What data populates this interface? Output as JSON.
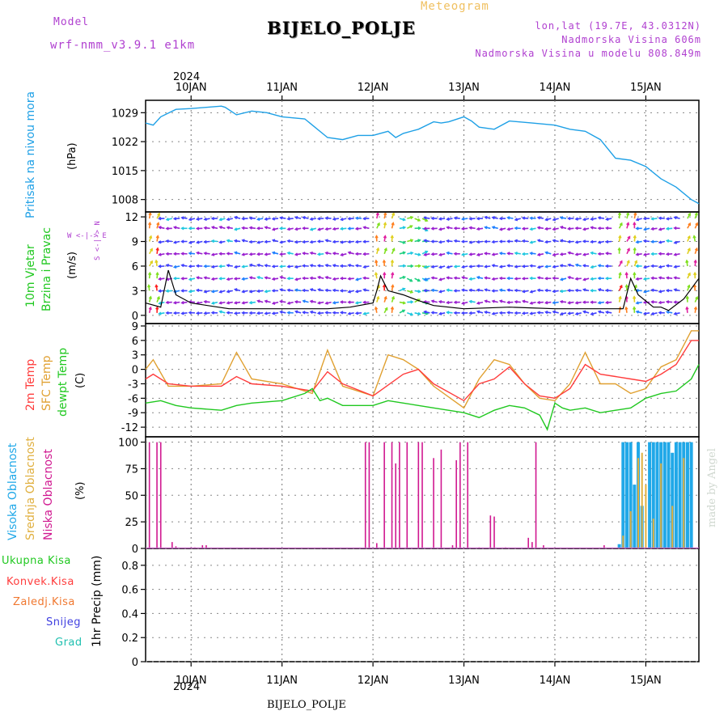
{
  "header": {
    "model_label": "Model",
    "model_name": "wrf-nmm_v3.9.1 e1km",
    "meteogram": "Meteogram",
    "title": "BIJELO_POLJE",
    "lonlat": "lon,lat (19.7E, 43.0312N)",
    "altitude": "Nadmorska Visina 606m",
    "model_altitude": "Nadmorska Visina u modelu 808.849m",
    "year_top": "2024",
    "year_bottom": "2024",
    "footer_name": "BIJELO_POLJE",
    "credit": "made by Angel"
  },
  "colors": {
    "pressure": "#1ea0e6",
    "model": "#b040d0",
    "meteogram": "#f0c060",
    "temp2m": "#ff3c3c",
    "sfc": "#e0a030",
    "dewpt": "#20c820",
    "high_cloud": "#20a8e8",
    "mid_cloud": "#e0b040",
    "low_cloud": "#d01890"
  },
  "panels": {
    "pressure": {
      "label": "Pritisak na nivou mora",
      "unit": "(hPa)",
      "yticks": [
        "1029",
        "1022",
        "1015",
        "1008"
      ]
    },
    "wind": {
      "label1": "10m Vjetar",
      "label2": "Brzina i Pravac",
      "unit": "(m/s)",
      "compass": "W <-|-> E",
      "compass_vert": "S <-|-> N",
      "yticks": [
        "12",
        "9",
        "6",
        "3",
        "0"
      ]
    },
    "temperature": {
      "label1": "2m Temp",
      "label2": "SFC Temp",
      "label3": "dewpt Temp",
      "unit": "(C)",
      "yticks": [
        "9",
        "6",
        "3",
        "0",
        "-3",
        "-6",
        "-9",
        "-12"
      ]
    },
    "cloud": {
      "label1": "Visoka Oblacnost",
      "label2": "Srednja Oblacnost",
      "label3": "Niska Oblacnost",
      "unit": "(%)",
      "yticks": [
        "100",
        "75",
        "50",
        "25",
        "0"
      ]
    },
    "precip": {
      "legend": [
        "Ukupna Kisa",
        "Konvek.Kisa",
        "Zaledj.Kisa",
        "Snijeg",
        "Grad"
      ],
      "unit": "1hr Precip (mm)",
      "yticks": [
        "0.8",
        "0.6",
        "0.4",
        "0.2",
        "0"
      ]
    }
  },
  "chart_data": {
    "type": "line",
    "x_days": [
      "10JAN",
      "11JAN",
      "12JAN",
      "13JAN",
      "14JAN",
      "15JAN"
    ],
    "x_hours": [
      0,
      24,
      48,
      72,
      96,
      120
    ],
    "x_range_hours": [
      -12,
      134
    ],
    "pressure_hpa": {
      "ylim": [
        1005,
        1032
      ],
      "x": [
        -12,
        -10,
        -8,
        -4,
        0,
        4,
        8,
        9,
        12,
        16,
        20,
        24,
        30,
        36,
        40,
        44,
        48,
        52,
        54,
        56,
        60,
        64,
        66,
        68,
        72,
        74,
        76,
        80,
        84,
        90,
        96,
        100,
        104,
        108,
        112,
        116,
        120,
        124,
        128,
        132,
        134
      ],
      "values": [
        1026.5,
        1026,
        1028,
        1029.8,
        1030,
        1030.3,
        1030.6,
        1030.3,
        1028.5,
        1029.4,
        1029,
        1028,
        1027.5,
        1023,
        1022.5,
        1023.5,
        1023.5,
        1024.5,
        1023,
        1024,
        1025,
        1026.8,
        1026.5,
        1026.8,
        1028,
        1027,
        1025.5,
        1025,
        1027,
        1026.5,
        1026,
        1025,
        1024.5,
        1022.5,
        1018,
        1017.5,
        1016,
        1013,
        1011,
        1008,
        1007
      ]
    },
    "wind_ms": {
      "ylim": [
        -1,
        12.6
      ],
      "x": [
        -12,
        -8,
        -6,
        -4,
        0,
        10,
        24,
        36,
        42,
        48,
        49,
        50,
        52,
        56,
        60,
        64,
        72,
        84,
        96,
        108,
        114,
        116,
        118,
        122,
        124,
        126,
        130,
        134
      ],
      "speed": [
        1.5,
        1.0,
        5.5,
        2.5,
        1.5,
        0.8,
        0.8,
        0.8,
        1.0,
        1.5,
        3.0,
        4.8,
        3.0,
        2.5,
        1.8,
        1.2,
        0.8,
        1.0,
        0.8,
        0.8,
        0.8,
        4.5,
        2.5,
        1.0,
        1.0,
        0.6,
        2.0,
        4.5
      ]
    },
    "temperature_c": {
      "ylim": [
        -14,
        9.5
      ],
      "series": [
        {
          "name": "2m Temp",
          "x": [
            -12,
            -10,
            -6,
            0,
            8,
            12,
            16,
            24,
            32,
            36,
            40,
            48,
            56,
            60,
            64,
            72,
            76,
            80,
            84,
            88,
            92,
            96,
            100,
            104,
            108,
            112,
            116,
            120,
            124,
            128,
            132,
            134
          ],
          "values": [
            -2,
            -1,
            -3,
            -3.5,
            -3.5,
            -1.5,
            -3,
            -3.5,
            -4.5,
            -0.5,
            -3,
            -5.5,
            -1,
            0,
            -3,
            -6.5,
            -3,
            -2,
            0.5,
            -3,
            -5.5,
            -6,
            -4,
            1,
            -1,
            -1.5,
            -2,
            -2.5,
            -1,
            1,
            6,
            6
          ]
        },
        {
          "name": "SFC Temp",
          "x": [
            -12,
            -10,
            -6,
            0,
            8,
            12,
            16,
            24,
            32,
            36,
            40,
            48,
            52,
            56,
            60,
            64,
            72,
            76,
            80,
            84,
            88,
            92,
            96,
            100,
            104,
            108,
            112,
            116,
            120,
            124,
            128,
            132,
            134
          ],
          "values": [
            0,
            2,
            -3.5,
            -3.5,
            -3,
            3.5,
            -2,
            -3,
            -5,
            4,
            -3.5,
            -5.5,
            3,
            2,
            0,
            -3.5,
            -8,
            -2,
            2,
            1,
            -3,
            -6,
            -6.5,
            -3,
            3.5,
            -3,
            -3,
            -5,
            -4,
            0.5,
            2,
            8,
            8
          ]
        },
        {
          "name": "dewpt Temp",
          "x": [
            -12,
            -8,
            -4,
            0,
            8,
            12,
            16,
            24,
            30,
            32,
            34,
            36,
            40,
            48,
            52,
            56,
            60,
            64,
            72,
            76,
            80,
            84,
            88,
            92,
            94,
            96,
            98,
            100,
            104,
            108,
            112,
            116,
            120,
            124,
            128,
            132,
            134
          ],
          "values": [
            -7,
            -6.5,
            -7.5,
            -8,
            -8.5,
            -7.5,
            -7,
            -6.5,
            -5,
            -4,
            -6.5,
            -6,
            -7.5,
            -7.5,
            -6.5,
            -7,
            -7.5,
            -8,
            -9,
            -10,
            -8.5,
            -7.5,
            -8,
            -9.5,
            -12.5,
            -7,
            -8,
            -8.5,
            -8,
            -9,
            -8.5,
            -8,
            -6,
            -5,
            -4.5,
            -2,
            1
          ]
        }
      ]
    },
    "cloud_pct": {
      "ylim": [
        0,
        105
      ],
      "series": [
        {
          "name": "Niska Oblacnost",
          "x": [
            -11,
            -9,
            -8,
            -5,
            -4,
            0,
            1,
            3,
            4,
            46,
            47,
            49,
            51,
            53,
            54,
            55,
            57,
            60,
            61,
            64,
            66,
            69,
            70,
            71,
            73,
            76,
            79,
            80,
            83,
            89,
            90,
            91,
            93,
            109
          ],
          "values": [
            100,
            100,
            100,
            6,
            2,
            1,
            1,
            3,
            3,
            100,
            100,
            5,
            100,
            100,
            80,
            100,
            100,
            100,
            100,
            85,
            93,
            3,
            83,
            100,
            100,
            1,
            31,
            30,
            1,
            10,
            6,
            100,
            3,
            3
          ]
        },
        {
          "name": "Visoka Oblacnost",
          "x": [
            113,
            114,
            115,
            116,
            117,
            118,
            119,
            121,
            122,
            123,
            124,
            125,
            126,
            127,
            128,
            129,
            130,
            131,
            132
          ],
          "values": [
            4,
            100,
            100,
            100,
            60,
            100,
            40,
            100,
            100,
            100,
            100,
            100,
            100,
            90,
            100,
            100,
            100,
            100,
            100
          ]
        },
        {
          "name": "Srednja Oblacnost",
          "x": [
            114,
            116,
            118,
            119,
            120,
            122,
            124,
            127,
            130
          ],
          "values": [
            12,
            35,
            85,
            90,
            60,
            28,
            80,
            40,
            85
          ]
        }
      ]
    },
    "precip_mm": {
      "ylim": [
        0,
        0.94
      ],
      "series": [
        {
          "name": "Ukupna Kisa",
          "values": []
        },
        {
          "name": "Konvek.Kisa",
          "values": []
        },
        {
          "name": "Zaledj.Kisa",
          "values": []
        },
        {
          "name": "Snijeg",
          "values": []
        },
        {
          "name": "Grad",
          "values": []
        }
      ]
    }
  }
}
